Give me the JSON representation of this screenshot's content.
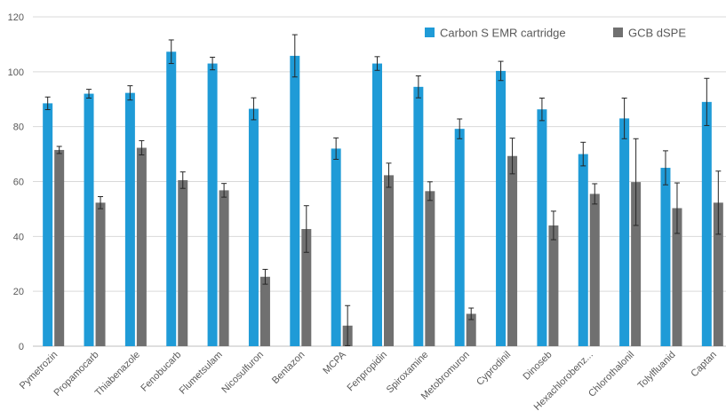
{
  "chart_data": {
    "type": "bar",
    "categories": [
      "Pymetrozin",
      "Propamocarb",
      "Thiabenazole",
      "Fenobucarb",
      "Flumetsulam",
      "Nicosulfuron",
      "Bentazon",
      "MCPA",
      "Fenpropidin",
      "Spiroxamine",
      "Metobromuron",
      "Cyprodinil",
      "Dinoseb",
      "Hexachlorobenz...",
      "Chlorothalonil",
      "Tolylfluanid",
      "Captan"
    ],
    "series": [
      {
        "name": "Carbon S EMR cartridge",
        "color": "#1f9bd7",
        "values": [
          88.5,
          92,
          92.3,
          107.3,
          103,
          86.5,
          105.8,
          72,
          103,
          94.5,
          79.2,
          100.3,
          86.3,
          70,
          83,
          65,
          89
        ],
        "errors": [
          2.3,
          1.6,
          2.6,
          4.3,
          2.3,
          4,
          7.7,
          3.9,
          2.5,
          4,
          3.6,
          3.5,
          4.1,
          4.3,
          7.4,
          6.2,
          8.6
        ]
      },
      {
        "name": "GCB dSPE",
        "color": "#707070",
        "values": [
          71.5,
          52.3,
          72.3,
          60.5,
          56.8,
          25.3,
          42.7,
          7.5,
          62.3,
          56.5,
          11.8,
          69.3,
          44,
          55.5,
          59.8,
          50.3,
          52.3
        ],
        "errors": [
          1.3,
          2.2,
          2.6,
          3,
          2.5,
          2.7,
          8.5,
          7.3,
          4.4,
          3.4,
          2.1,
          6.5,
          5.2,
          3.7,
          15.8,
          9.2,
          11.5
        ]
      }
    ],
    "ylim": [
      0,
      120
    ],
    "yticks": [
      0,
      20,
      40,
      60,
      80,
      100,
      120
    ],
    "grid": true,
    "legend": "top-right",
    "title": "",
    "xlabel": "",
    "ylabel": ""
  }
}
